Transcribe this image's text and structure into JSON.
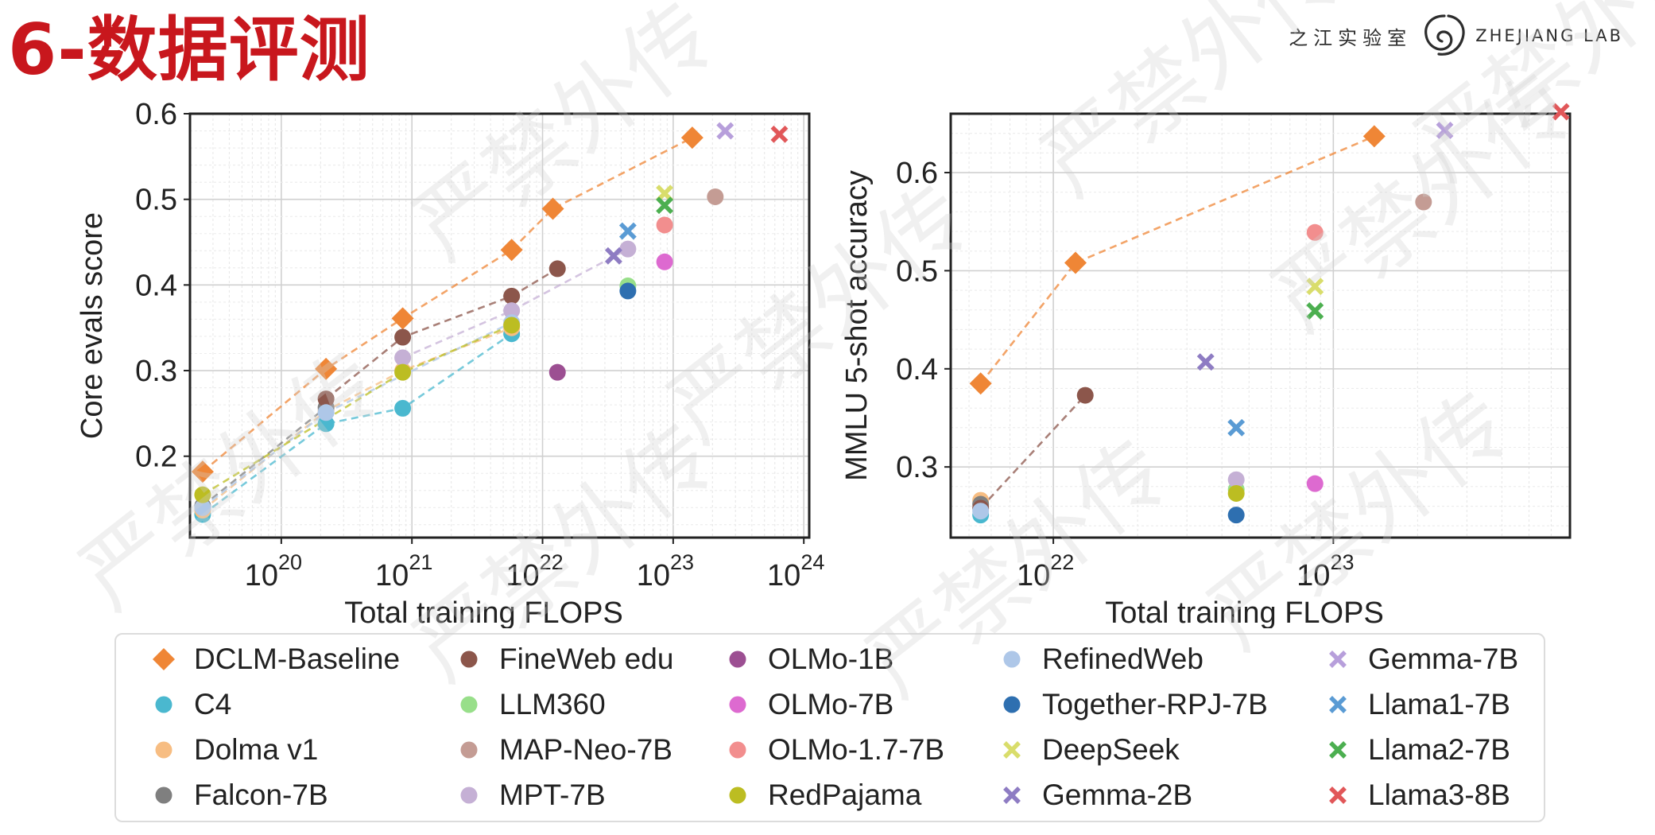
{
  "page": {
    "title": "6-数据评测",
    "brand_cn": "之江实验室",
    "brand_en": "ZHEJIANG LAB",
    "watermark": "严禁外传"
  },
  "chart_data": [
    {
      "type": "scatter",
      "xscale": "log",
      "xlim": [
        2e+19,
        1.1e+24
      ],
      "ylim": [
        0.105,
        0.6
      ],
      "xlabel": "Total training FLOPS",
      "ylabel": "Core evals score",
      "x_ticks": [
        "10^20",
        "10^21",
        "10^22",
        "10^23",
        "10^24"
      ],
      "y_ticks": [
        0.2,
        0.3,
        0.4,
        0.5,
        0.6
      ],
      "grid": true,
      "series": [
        {
          "name": "DCLM-Baseline",
          "points": [
            [
              2.5e+19,
              0.182
            ],
            [
              2.2e+20,
              0.302
            ],
            [
              8.5e+20,
              0.361
            ],
            [
              5.8e+21,
              0.441
            ],
            [
              1.2e+22,
              0.489
            ],
            [
              1.4e+23,
              0.572
            ]
          ]
        },
        {
          "name": "C4",
          "points": [
            [
              2.5e+19,
              0.132
            ],
            [
              2.2e+20,
              0.238
            ],
            [
              8.5e+20,
              0.256
            ],
            [
              5.8e+21,
              0.343
            ]
          ]
        },
        {
          "name": "Dolma v1",
          "points": [
            [
              2.5e+19,
              0.137
            ],
            [
              2.2e+20,
              0.253
            ],
            [
              8.5e+20,
              0.3
            ],
            [
              5.8e+21,
              0.35
            ]
          ]
        },
        {
          "name": "Falcon-7B",
          "points": [
            [
              2.5e+19,
              0.142
            ],
            [
              2.2e+20,
              0.257
            ]
          ]
        },
        {
          "name": "FineWeb edu",
          "points": [
            [
              2.2e+20,
              0.267
            ],
            [
              8.5e+20,
              0.339
            ],
            [
              5.8e+21,
              0.387
            ],
            [
              1.3e+22,
              0.419
            ]
          ]
        },
        {
          "name": "LLM360",
          "points": [
            [
              4.5e+22,
              0.399
            ]
          ]
        },
        {
          "name": "MAP-Neo-7B",
          "points": [
            [
              2.1e+23,
              0.503
            ]
          ]
        },
        {
          "name": "MPT-7B",
          "points": [
            [
              8.5e+20,
              0.315
            ],
            [
              5.8e+21,
              0.37
            ],
            [
              4.5e+22,
              0.442
            ]
          ]
        },
        {
          "name": "OLMo-1B",
          "points": [
            [
              1.3e+22,
              0.298
            ]
          ]
        },
        {
          "name": "OLMo-7B",
          "points": [
            [
              8.6e+22,
              0.427
            ]
          ]
        },
        {
          "name": "OLMo-1.7-7B",
          "points": [
            [
              8.6e+22,
              0.47
            ]
          ]
        },
        {
          "name": "RefinedWeb",
          "points": [
            [
              2.5e+19,
              0.14
            ],
            [
              2.2e+20,
              0.251
            ],
            [
              5.8e+21,
              0.356
            ]
          ]
        },
        {
          "name": "Together-RPJ-7B",
          "points": [
            [
              4.5e+22,
              0.393
            ]
          ]
        },
        {
          "name": "RedPajama",
          "points": [
            [
              2.5e+19,
              0.155
            ],
            [
              8.5e+20,
              0.298
            ],
            [
              5.8e+21,
              0.353
            ]
          ]
        },
        {
          "name": "DeepSeek",
          "points": [
            [
              8.6e+22,
              0.507
            ]
          ]
        },
        {
          "name": "Gemma-2B",
          "points": [
            [
              3.5e+22,
              0.434
            ]
          ]
        },
        {
          "name": "Gemma-7B",
          "points": [
            [
              2.5e+23,
              0.58
            ]
          ]
        },
        {
          "name": "Llama1-7B",
          "points": [
            [
              4.5e+22,
              0.463
            ]
          ]
        },
        {
          "name": "Llama2-7B",
          "points": [
            [
              8.6e+22,
              0.493
            ]
          ]
        },
        {
          "name": "Llama3-8B",
          "points": [
            [
              6.5e+23,
              0.576
            ]
          ]
        }
      ]
    },
    {
      "type": "scatter",
      "xscale": "log",
      "xlim": [
        4.3e+21,
        7e+23
      ],
      "ylim": [
        0.228,
        0.66
      ],
      "xlabel": "Total training FLOPS",
      "ylabel": "MMLU 5-shot accuracy",
      "x_ticks": [
        "10^22",
        "10^23"
      ],
      "y_ticks": [
        0.3,
        0.4,
        0.5,
        0.6
      ],
      "grid": true,
      "series": [
        {
          "name": "DCLM-Baseline",
          "points": [
            [
              5.5e+21,
              0.385
            ],
            [
              1.2e+22,
              0.508
            ],
            [
              1.4e+23,
              0.637
            ]
          ]
        },
        {
          "name": "C4",
          "points": [
            [
              5.5e+21,
              0.251
            ]
          ]
        },
        {
          "name": "Dolma v1",
          "points": [
            [
              5.5e+21,
              0.266
            ]
          ]
        },
        {
          "name": "Falcon-7B",
          "points": [
            [
              5.5e+21,
              0.262
            ]
          ]
        },
        {
          "name": "FineWeb edu",
          "points": [
            [
              5.5e+21,
              0.258
            ],
            [
              1.3e+22,
              0.373
            ]
          ]
        },
        {
          "name": "LLM360",
          "points": [
            [
              4.5e+22,
              0.277
            ]
          ]
        },
        {
          "name": "MAP-Neo-7B",
          "points": [
            [
              2.1e+23,
              0.57
            ]
          ]
        },
        {
          "name": "MPT-7B",
          "points": [
            [
              4.5e+22,
              0.287
            ]
          ]
        },
        {
          "name": "OLMo-7B",
          "points": [
            [
              8.6e+22,
              0.283
            ]
          ]
        },
        {
          "name": "OLMo-1.7-7B",
          "points": [
            [
              8.6e+22,
              0.539
            ]
          ]
        },
        {
          "name": "RefinedWeb",
          "points": [
            [
              5.5e+21,
              0.255
            ]
          ]
        },
        {
          "name": "Together-RPJ-7B",
          "points": [
            [
              4.5e+22,
              0.251
            ]
          ]
        },
        {
          "name": "RedPajama",
          "points": [
            [
              4.5e+22,
              0.273
            ]
          ]
        },
        {
          "name": "DeepSeek",
          "points": [
            [
              8.6e+22,
              0.484
            ]
          ]
        },
        {
          "name": "Gemma-2B",
          "points": [
            [
              3.5e+22,
              0.407
            ]
          ]
        },
        {
          "name": "Gemma-7B",
          "points": [
            [
              2.5e+23,
              0.643
            ]
          ]
        },
        {
          "name": "Llama1-7B",
          "points": [
            [
              4.5e+22,
              0.34
            ]
          ]
        },
        {
          "name": "Llama2-7B",
          "points": [
            [
              8.6e+22,
              0.459
            ]
          ]
        },
        {
          "name": "Llama3-8B",
          "points": [
            [
              6.5e+23,
              0.662
            ]
          ]
        }
      ]
    }
  ],
  "legend": {
    "placement": "bottom",
    "items": [
      {
        "label": "DCLM-Baseline",
        "color": "#ef8636",
        "marker": "diamond"
      },
      {
        "label": "FineWeb edu",
        "color": "#8c564b",
        "marker": "circle"
      },
      {
        "label": "OLMo-1B",
        "color": "#9c4f92",
        "marker": "circle"
      },
      {
        "label": "RefinedWeb",
        "color": "#aec7e8",
        "marker": "circle"
      },
      {
        "label": "Gemma-7B",
        "color": "#b79fdb",
        "marker": "x"
      },
      {
        "label": "C4",
        "color": "#4ab8cf",
        "marker": "circle"
      },
      {
        "label": "LLM360",
        "color": "#98df8a",
        "marker": "circle"
      },
      {
        "label": "OLMo-7B",
        "color": "#dd6ad0",
        "marker": "circle"
      },
      {
        "label": "Together-RPJ-7B",
        "color": "#2e6fb0",
        "marker": "circle"
      },
      {
        "label": "Llama1-7B",
        "color": "#5a9bd4",
        "marker": "x"
      },
      {
        "label": "Dolma v1",
        "color": "#f7bd82",
        "marker": "circle"
      },
      {
        "label": "MAP-Neo-7B",
        "color": "#c49c94",
        "marker": "circle"
      },
      {
        "label": "OLMo-1.7-7B",
        "color": "#f28e8e",
        "marker": "circle"
      },
      {
        "label": "DeepSeek",
        "color": "#d9dd6b",
        "marker": "x"
      },
      {
        "label": "Llama2-7B",
        "color": "#4caf50",
        "marker": "x"
      },
      {
        "label": "Falcon-7B",
        "color": "#7f7f7f",
        "marker": "circle"
      },
      {
        "label": "MPT-7B",
        "color": "#c5b0d5",
        "marker": "circle"
      },
      {
        "label": "RedPajama",
        "color": "#bcbd22",
        "marker": "circle"
      },
      {
        "label": "Gemma-2B",
        "color": "#8e7cc3",
        "marker": "x"
      },
      {
        "label": "Llama3-8B",
        "color": "#e15759",
        "marker": "x"
      }
    ]
  }
}
